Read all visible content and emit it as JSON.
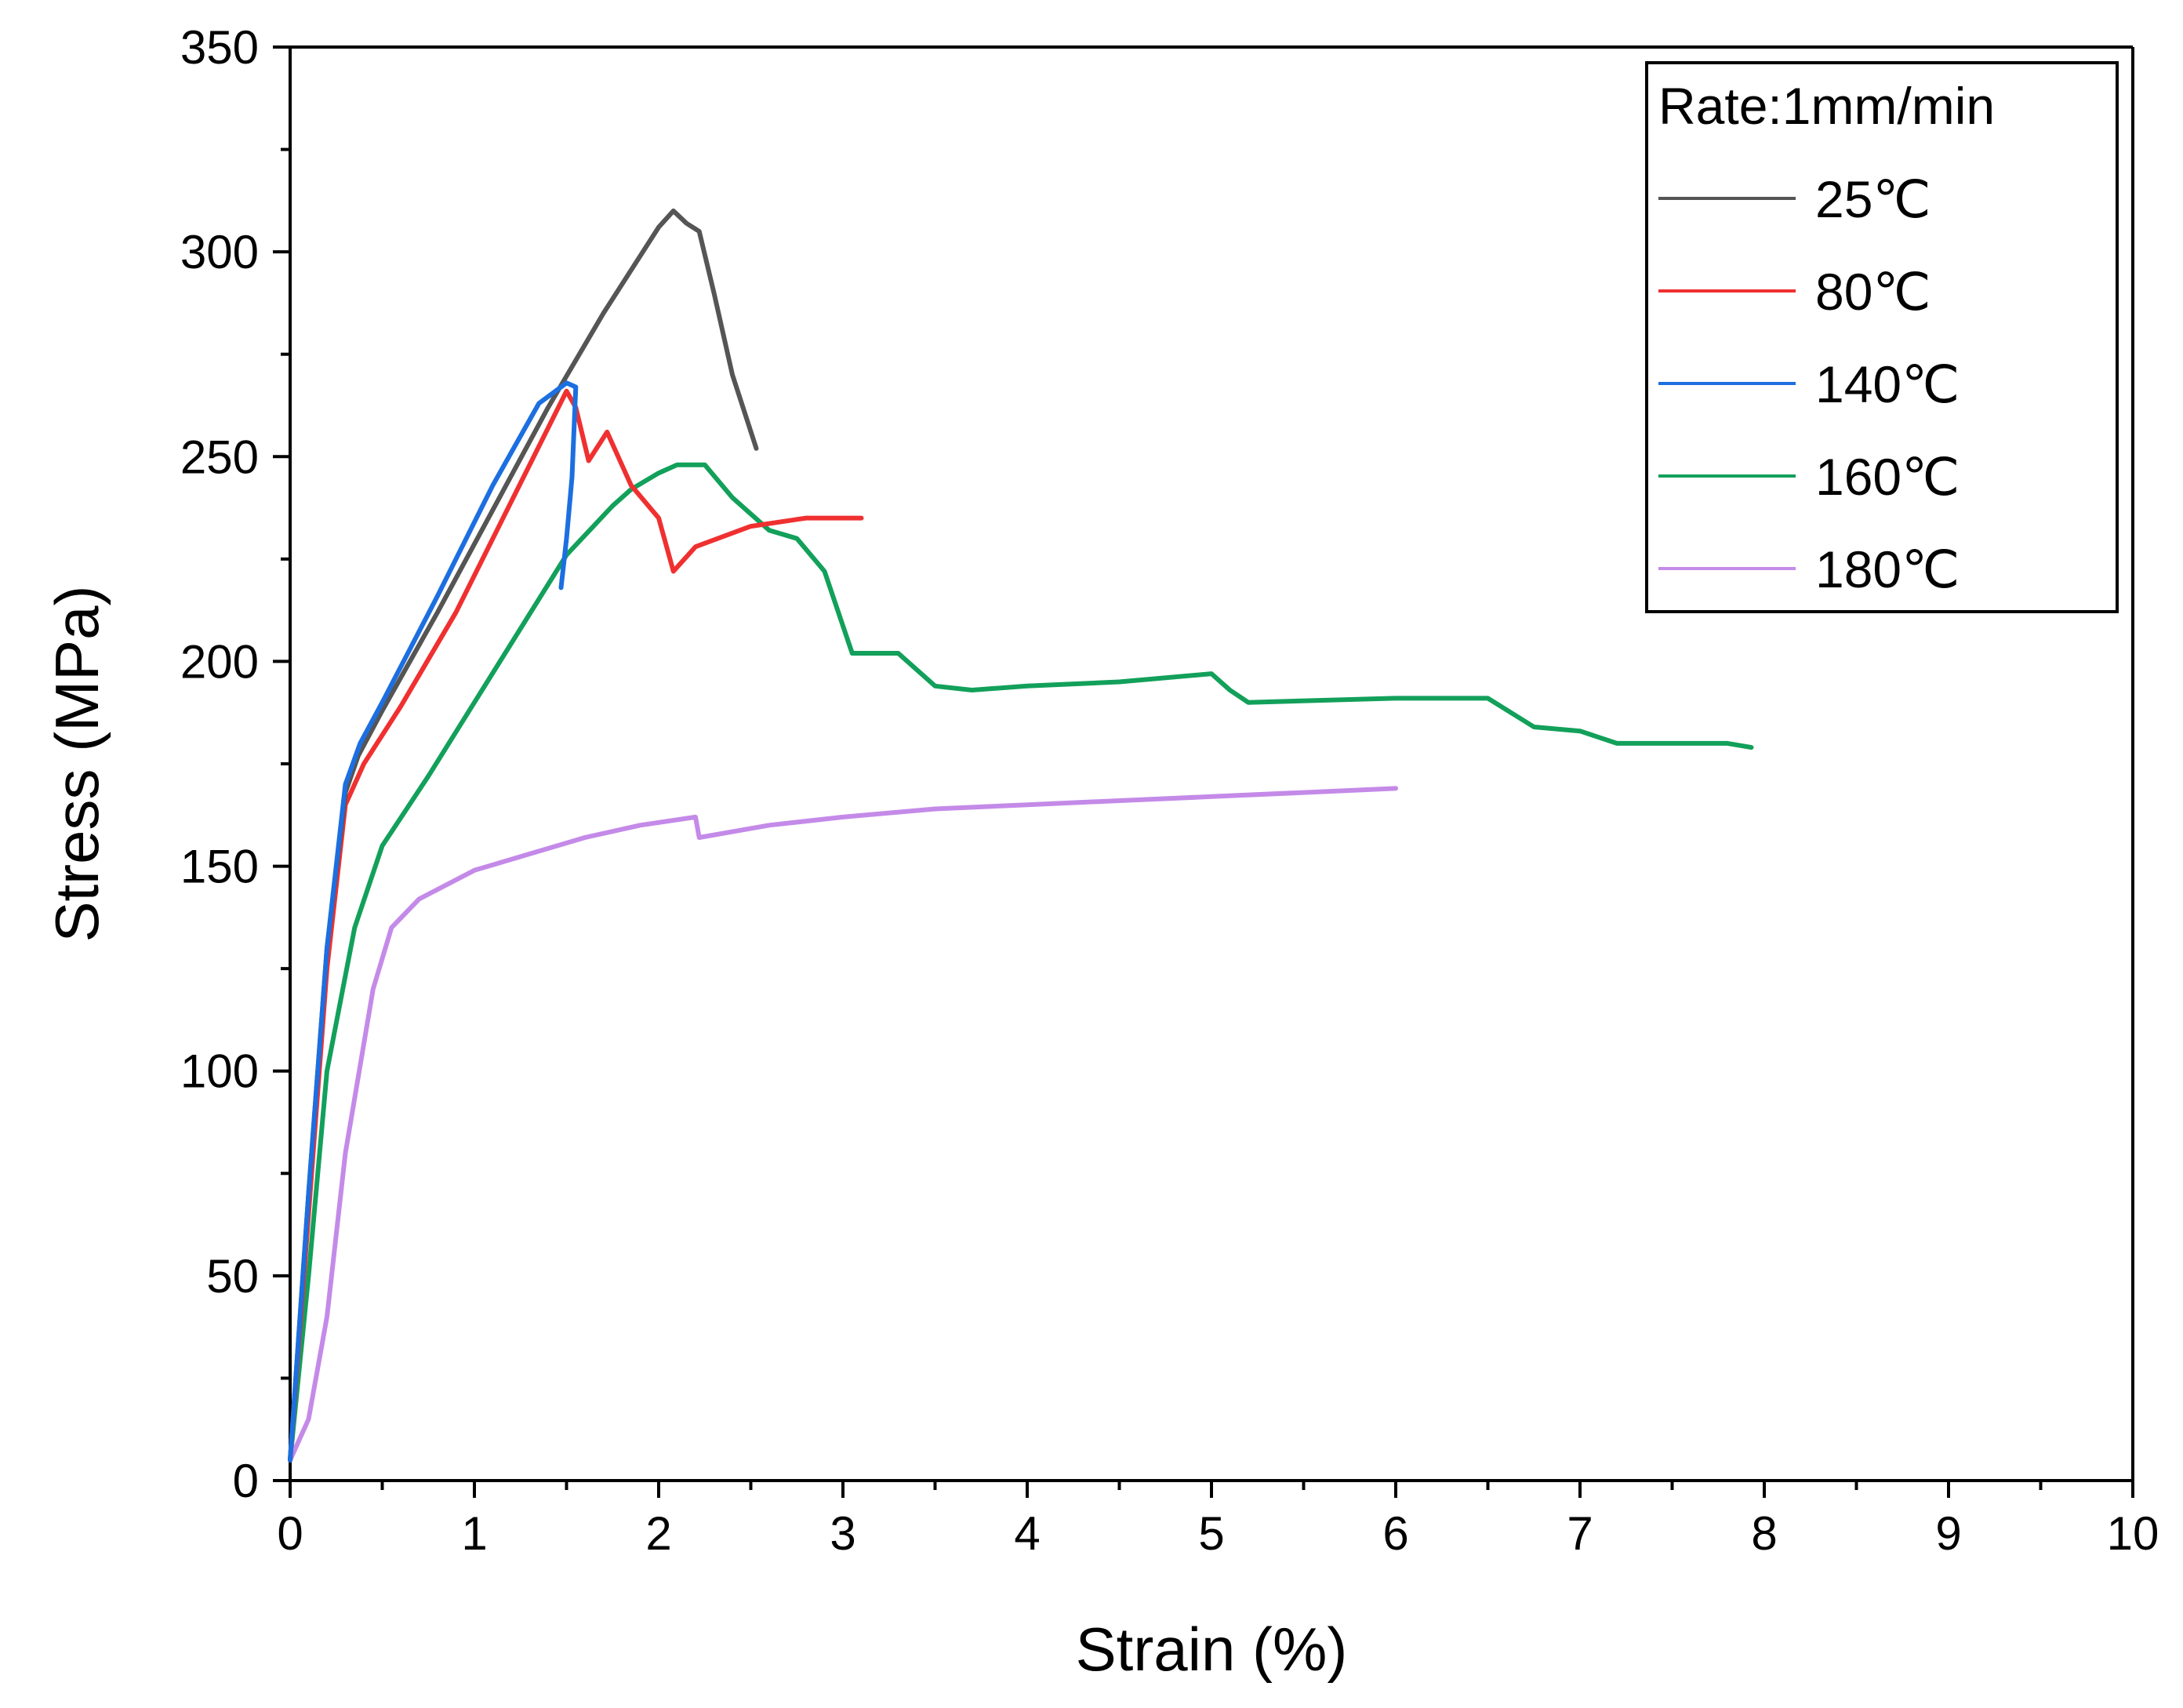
{
  "chart_data": {
    "type": "line",
    "title": "",
    "xlabel": "Strain (%)",
    "ylabel": "Stress (MPa)",
    "xlim": [
      0,
      10
    ],
    "ylim": [
      0,
      350
    ],
    "x_ticks": [
      0,
      1,
      2,
      3,
      4,
      5,
      6,
      7,
      8,
      9,
      10
    ],
    "y_ticks": [
      0,
      50,
      100,
      150,
      200,
      250,
      300,
      350
    ],
    "grid": false,
    "legend": {
      "title": "Rate:1mm/min",
      "position": "top-right"
    },
    "series": [
      {
        "name": "25℃",
        "color": "#555555",
        "x": [
          0,
          0.1,
          0.2,
          0.3,
          0.37,
          0.5,
          0.8,
          1.1,
          1.4,
          1.7,
          2.0,
          2.08,
          2.15,
          2.22,
          2.3,
          2.4,
          2.53
        ],
        "y": [
          5,
          70,
          130,
          168,
          177,
          188,
          212,
          237,
          262,
          285,
          306,
          310,
          307,
          305,
          290,
          270,
          252
        ]
      },
      {
        "name": "80℃",
        "color": "#f03030",
        "x": [
          0,
          0.1,
          0.2,
          0.3,
          0.4,
          0.6,
          0.9,
          1.2,
          1.5,
          1.55,
          1.62,
          1.72,
          1.85,
          2.0,
          2.08,
          2.2,
          2.5,
          2.8,
          3.1
        ],
        "y": [
          5,
          65,
          125,
          165,
          175,
          189,
          212,
          239,
          266,
          262,
          249,
          256,
          243,
          235,
          222,
          228,
          233,
          235,
          235
        ]
      },
      {
        "name": "140℃",
        "color": "#1c6fe0",
        "x": [
          0,
          0.1,
          0.2,
          0.3,
          0.38,
          0.5,
          0.8,
          1.1,
          1.35,
          1.5,
          1.55,
          1.53,
          1.5,
          1.47
        ],
        "y": [
          5,
          70,
          130,
          170,
          180,
          190,
          216,
          243,
          263,
          268,
          267,
          245,
          230,
          218
        ]
      },
      {
        "name": "160℃",
        "color": "#12a05a",
        "x": [
          0,
          0.1,
          0.2,
          0.35,
          0.5,
          0.75,
          1.0,
          1.25,
          1.5,
          1.75,
          1.85,
          2.0,
          2.1,
          2.25,
          2.4,
          2.6,
          2.75,
          2.9,
          3.05,
          3.3,
          3.5,
          3.7,
          4.0,
          4.5,
          5.0,
          5.1,
          5.2,
          6.0,
          6.5,
          6.75,
          7.0,
          7.2,
          7.5,
          7.8,
          7.93
        ],
        "y": [
          5,
          50,
          100,
          135,
          155,
          172,
          190,
          208,
          226,
          238,
          242,
          246,
          248,
          248,
          240,
          232,
          230,
          222,
          202,
          202,
          194,
          193,
          194,
          195,
          197,
          193,
          190,
          191,
          191,
          184,
          183,
          180,
          180,
          180,
          179
        ]
      },
      {
        "name": "180℃",
        "color": "#c48ae8",
        "x": [
          0,
          0.1,
          0.2,
          0.3,
          0.45,
          0.55,
          0.7,
          1.0,
          1.3,
          1.6,
          1.9,
          2.2,
          2.22,
          2.6,
          3.0,
          3.5,
          4.0,
          4.5,
          5.0,
          5.5,
          6.0
        ],
        "y": [
          5,
          15,
          40,
          80,
          120,
          135,
          142,
          149,
          153,
          157,
          160,
          162,
          157,
          160,
          162,
          164,
          165,
          166,
          167,
          168,
          169
        ]
      }
    ]
  }
}
